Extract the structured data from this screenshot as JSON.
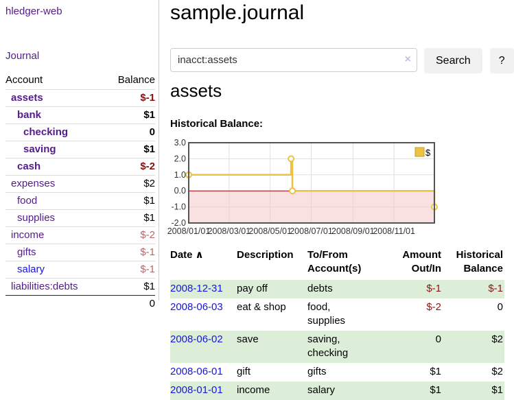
{
  "sidebar": {
    "brand": "hledger-web",
    "journal_link": "Journal",
    "accounts_table": {
      "account_header": "Account",
      "balance_header": "Balance",
      "rows": [
        {
          "name": "assets",
          "balance": "$-1",
          "indent": 1,
          "bold": true,
          "neg": true
        },
        {
          "name": "bank",
          "balance": "$1",
          "indent": 2,
          "bold": true,
          "neg": false
        },
        {
          "name": "checking",
          "balance": "0",
          "indent": 3,
          "bold": true,
          "neg": false
        },
        {
          "name": "saving",
          "balance": "$1",
          "indent": 3,
          "bold": true,
          "neg": false
        },
        {
          "name": "cash",
          "balance": "$-2",
          "indent": 2,
          "bold": true,
          "neg": true
        },
        {
          "name": "expenses",
          "balance": "$2",
          "indent": 1,
          "bold": false,
          "neg": false
        },
        {
          "name": "food",
          "balance": "$1",
          "indent": 2,
          "bold": false,
          "neg": false
        },
        {
          "name": "supplies",
          "balance": "$1",
          "indent": 2,
          "bold": false,
          "neg": false
        },
        {
          "name": "income",
          "balance": "$-2",
          "indent": 1,
          "bold": false,
          "neg": true
        },
        {
          "name": "gifts",
          "balance": "$-1",
          "indent": 2,
          "bold": false,
          "neg": true
        },
        {
          "name": "salary",
          "balance": "$-1",
          "indent": 2,
          "bold": false,
          "neg": true,
          "blue": true
        },
        {
          "name": "liabilities:debts",
          "balance": "$1",
          "indent": 1,
          "bold": false,
          "neg": false
        }
      ],
      "total": "0"
    }
  },
  "main": {
    "title": "sample.journal",
    "search": {
      "value": "inacct:assets",
      "clear_icon": "×",
      "search_button": "Search",
      "help_button": "?"
    },
    "account_heading": "assets",
    "chart_heading": "Historical Balance:"
  },
  "chart_data": {
    "type": "line",
    "title": "Historical Balance:",
    "step": true,
    "x_range": [
      "2008-01-01",
      "2008-12-31"
    ],
    "x_ticks": [
      "2008/01/01",
      "2008/03/01",
      "2008/05/01",
      "2008/07/01",
      "2008/09/01",
      "2008/11/01"
    ],
    "y_ticks": [
      "3.0",
      "2.0",
      "1.0",
      "0.0",
      "-1.0",
      "-2.0"
    ],
    "ylim": [
      -2,
      3
    ],
    "grid": true,
    "legend_position": "top-right",
    "series": [
      {
        "name": "$",
        "color": "#edc240",
        "points": [
          [
            "2008-01-01",
            1
          ],
          [
            "2008-06-01",
            2
          ],
          [
            "2008-06-03",
            0
          ],
          [
            "2008-12-31",
            -1
          ]
        ]
      }
    ],
    "negative_region_color": "#f6c9c9",
    "zero_line_color": "#a40000",
    "border_color": "#545454",
    "grid_color": "#e0e0e0"
  },
  "register": {
    "headers": [
      {
        "lines": [
          "Date"
        ],
        "sort_icon": "∧",
        "align": "left"
      },
      {
        "lines": [
          "Description"
        ],
        "align": "left"
      },
      {
        "lines": [
          "To/From",
          "Account(s)"
        ],
        "align": "left"
      },
      {
        "lines": [
          "Amount",
          "Out/In"
        ],
        "align": "right"
      },
      {
        "lines": [
          "Historical",
          "Balance"
        ],
        "align": "right"
      }
    ],
    "rows": [
      {
        "date": "2008-12-31",
        "description": "pay off",
        "accounts": "debts",
        "amount": "$-1",
        "amount_neg": true,
        "balance": "$-1",
        "balance_neg": true
      },
      {
        "date": "2008-06-03",
        "description": "eat & shop",
        "accounts": "food, supplies",
        "amount": "$-2",
        "amount_neg": true,
        "balance": "0",
        "balance_neg": false
      },
      {
        "date": "2008-06-02",
        "description": "save",
        "accounts": "saving, checking",
        "amount": "0",
        "amount_neg": false,
        "balance": "$2",
        "balance_neg": false
      },
      {
        "date": "2008-06-01",
        "description": "gift",
        "accounts": "gifts",
        "amount": "$1",
        "amount_neg": false,
        "balance": "$2",
        "balance_neg": false
      },
      {
        "date": "2008-01-01",
        "description": "income",
        "accounts": "salary",
        "amount": "$1",
        "amount_neg": false,
        "balance": "$1",
        "balance_neg": false
      }
    ]
  }
}
